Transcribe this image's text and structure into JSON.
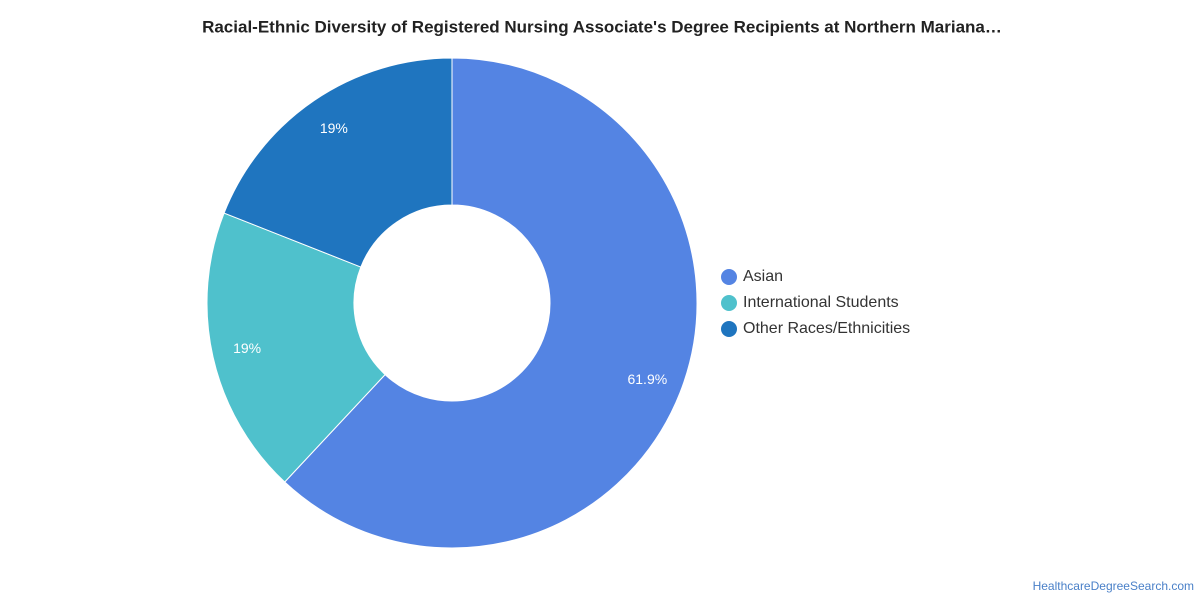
{
  "chart_data": {
    "type": "donut",
    "title": "Racial-Ethnic Diversity of Registered Nursing Associate's Degree Recipients at Northern Mariana…",
    "categories": [
      "Asian",
      "International Students",
      "Other Races/Ethnicities"
    ],
    "values": [
      61.9,
      19,
      19
    ],
    "value_labels": [
      "61.9%",
      "19%",
      "19%"
    ],
    "colors": [
      "#5484e3",
      "#4fc1cc",
      "#1f75bf"
    ],
    "legend": "right"
  },
  "footer": {
    "source": "HealthcareDegreeSearch.com"
  }
}
